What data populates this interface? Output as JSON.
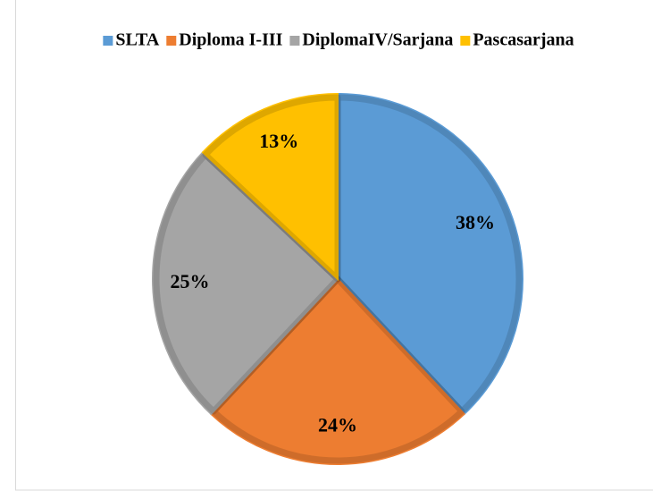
{
  "chart_data": {
    "type": "pie",
    "categories": [
      "SLTA",
      "Diploma I-III",
      "DiplomaIV/Sarjana",
      "Pascasarjana"
    ],
    "values": [
      38,
      24,
      25,
      13
    ],
    "value_labels": [
      "38%",
      "24%",
      "25%",
      "13%"
    ],
    "colors": [
      "#5b9bd5",
      "#ed7d31",
      "#a5a5a5",
      "#ffc000"
    ],
    "legend": "top"
  }
}
